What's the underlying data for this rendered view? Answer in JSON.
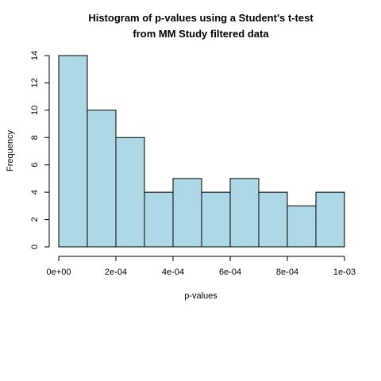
{
  "chart_data": {
    "type": "bar",
    "title_line1": "Histogram of p-values using a Student's t-test",
    "title_line2": "from MM Study filtered data",
    "xlabel": "p-values",
    "ylabel": "Frequency",
    "bin_edges": [
      0,
      0.0001,
      0.0002,
      0.0003,
      0.0004,
      0.0005,
      0.0006,
      0.0007,
      0.0008,
      0.0009,
      0.001
    ],
    "values": [
      14,
      10,
      8,
      4,
      5,
      4,
      5,
      4,
      3,
      4
    ],
    "xlim": [
      0,
      0.001
    ],
    "ylim": [
      0,
      14
    ],
    "x_ticks": [
      0,
      0.0002,
      0.0004,
      0.0006,
      0.0008,
      0.001
    ],
    "x_tick_labels": [
      "0e+00",
      "2e-04",
      "4e-04",
      "6e-04",
      "8e-04",
      "1e-03"
    ],
    "y_ticks": [
      0,
      2,
      4,
      6,
      8,
      10,
      12,
      14
    ],
    "y_tick_labels": [
      "0",
      "2",
      "4",
      "6",
      "8",
      "10",
      "12",
      "14"
    ],
    "bar_color": "#add8e6",
    "border_color": "#000000"
  }
}
